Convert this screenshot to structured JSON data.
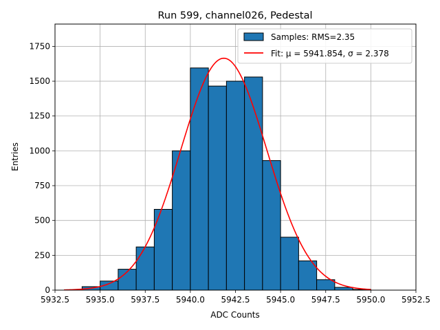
{
  "chart_data": {
    "type": "bar",
    "subtype": "histogram-with-fit",
    "title": "Run 599, channel026, Pedestal",
    "xlabel": "ADC Counts",
    "ylabel": "Entries",
    "xlim": [
      5932.5,
      5952.5
    ],
    "ylim": [
      0,
      1910
    ],
    "grid": true,
    "legend_position": "top-right",
    "xticks": [
      5932.5,
      5935.0,
      5937.5,
      5940.0,
      5942.5,
      5945.0,
      5947.5,
      5950.0,
      5952.5
    ],
    "xtick_labels": [
      "5932.5",
      "5935.0",
      "5937.5",
      "5940.0",
      "5942.5",
      "5945.0",
      "5947.5",
      "5950.0",
      "5952.5"
    ],
    "yticks": [
      0,
      250,
      500,
      750,
      1000,
      1250,
      1500,
      1750
    ],
    "ytick_labels": [
      "0",
      "250",
      "500",
      "750",
      "1000",
      "1250",
      "1500",
      "1750"
    ],
    "bin_width": 1,
    "bins": [
      {
        "x0": 5934,
        "count": 25
      },
      {
        "x0": 5935,
        "count": 65
      },
      {
        "x0": 5936,
        "count": 150
      },
      {
        "x0": 5937,
        "count": 310
      },
      {
        "x0": 5938,
        "count": 580
      },
      {
        "x0": 5939,
        "count": 1000
      },
      {
        "x0": 5940,
        "count": 1595
      },
      {
        "x0": 5941,
        "count": 1465
      },
      {
        "x0": 5942,
        "count": 1500
      },
      {
        "x0": 5943,
        "count": 1530
      },
      {
        "x0": 5944,
        "count": 930
      },
      {
        "x0": 5945,
        "count": 380
      },
      {
        "x0": 5946,
        "count": 210
      },
      {
        "x0": 5947,
        "count": 75
      },
      {
        "x0": 5948,
        "count": 20
      },
      {
        "x0": 5949,
        "count": 5
      }
    ],
    "fit": {
      "mu": 5941.854,
      "sigma": 2.378,
      "amplitude": 1665,
      "x_range": [
        5933,
        5950
      ]
    },
    "series": [
      {
        "name": "Samples: RMS=2.35",
        "kind": "histogram",
        "color": "#1f77b4"
      },
      {
        "name": "Fit: μ = 5941.854, σ = 2.378",
        "kind": "line",
        "color": "#ff0000"
      }
    ]
  }
}
